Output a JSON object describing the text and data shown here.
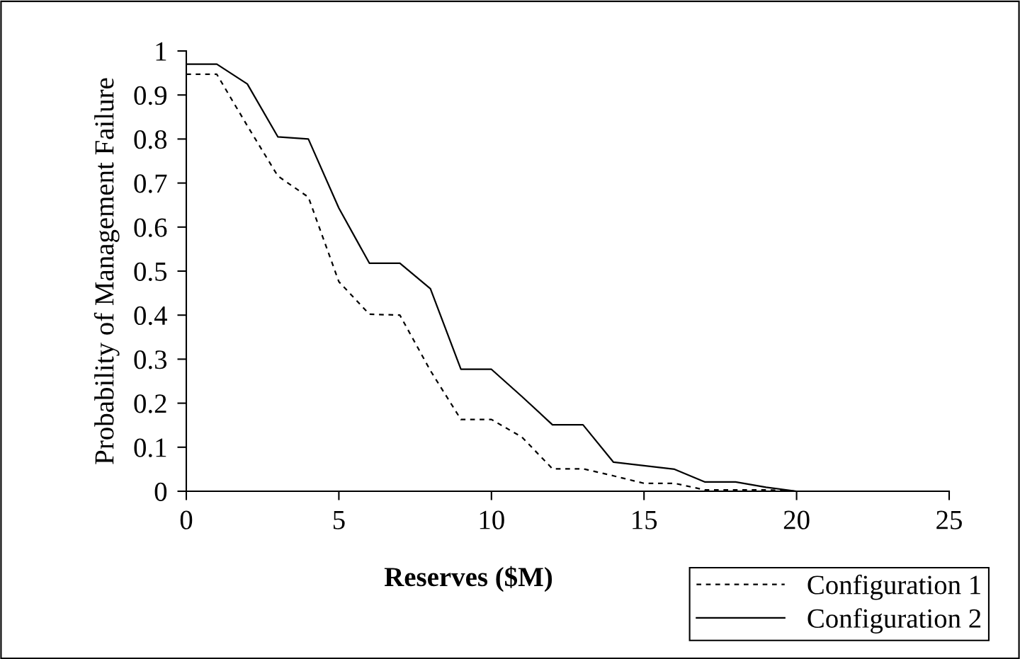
{
  "chart_data": {
    "type": "line",
    "xlabel": "Reserves ($M)",
    "ylabel": "Probability of Management Failure",
    "x": [
      0,
      1,
      2,
      3,
      4,
      5,
      6,
      7,
      8,
      9,
      10,
      11,
      12,
      13,
      14,
      15,
      16,
      17,
      18,
      19,
      20,
      21,
      22,
      23,
      24,
      25
    ],
    "series": [
      {
        "name": "Configuration 1",
        "color": "#000000",
        "line_style": "dashed",
        "values": [
          0.947,
          0.947,
          0.83,
          0.716,
          0.668,
          0.476,
          0.402,
          0.4,
          0.274,
          0.163,
          0.163,
          0.123,
          0.051,
          0.051,
          0.035,
          0.018,
          0.018,
          0.003,
          0.003,
          0.003,
          0,
          0,
          0,
          0,
          0,
          0
        ]
      },
      {
        "name": "Configuration 2",
        "color": "#000000",
        "line_style": "solid",
        "values": [
          0.97,
          0.97,
          0.925,
          0.805,
          0.8,
          0.643,
          0.518,
          0.518,
          0.46,
          0.277,
          0.277,
          0.215,
          0.151,
          0.151,
          0.066,
          0.058,
          0.05,
          0.021,
          0.021,
          0.009,
          0,
          0,
          0,
          0,
          0,
          0
        ]
      }
    ],
    "xlim": [
      0,
      25
    ],
    "xticks": [
      0,
      5,
      10,
      15,
      20,
      25
    ],
    "ylim": [
      0,
      1
    ],
    "yticks": [
      0,
      0.1,
      0.2,
      0.3,
      0.4,
      0.5,
      0.6,
      0.7,
      0.8,
      0.9,
      1
    ],
    "grid": false,
    "legend": "bottom right",
    "marker": "none"
  }
}
